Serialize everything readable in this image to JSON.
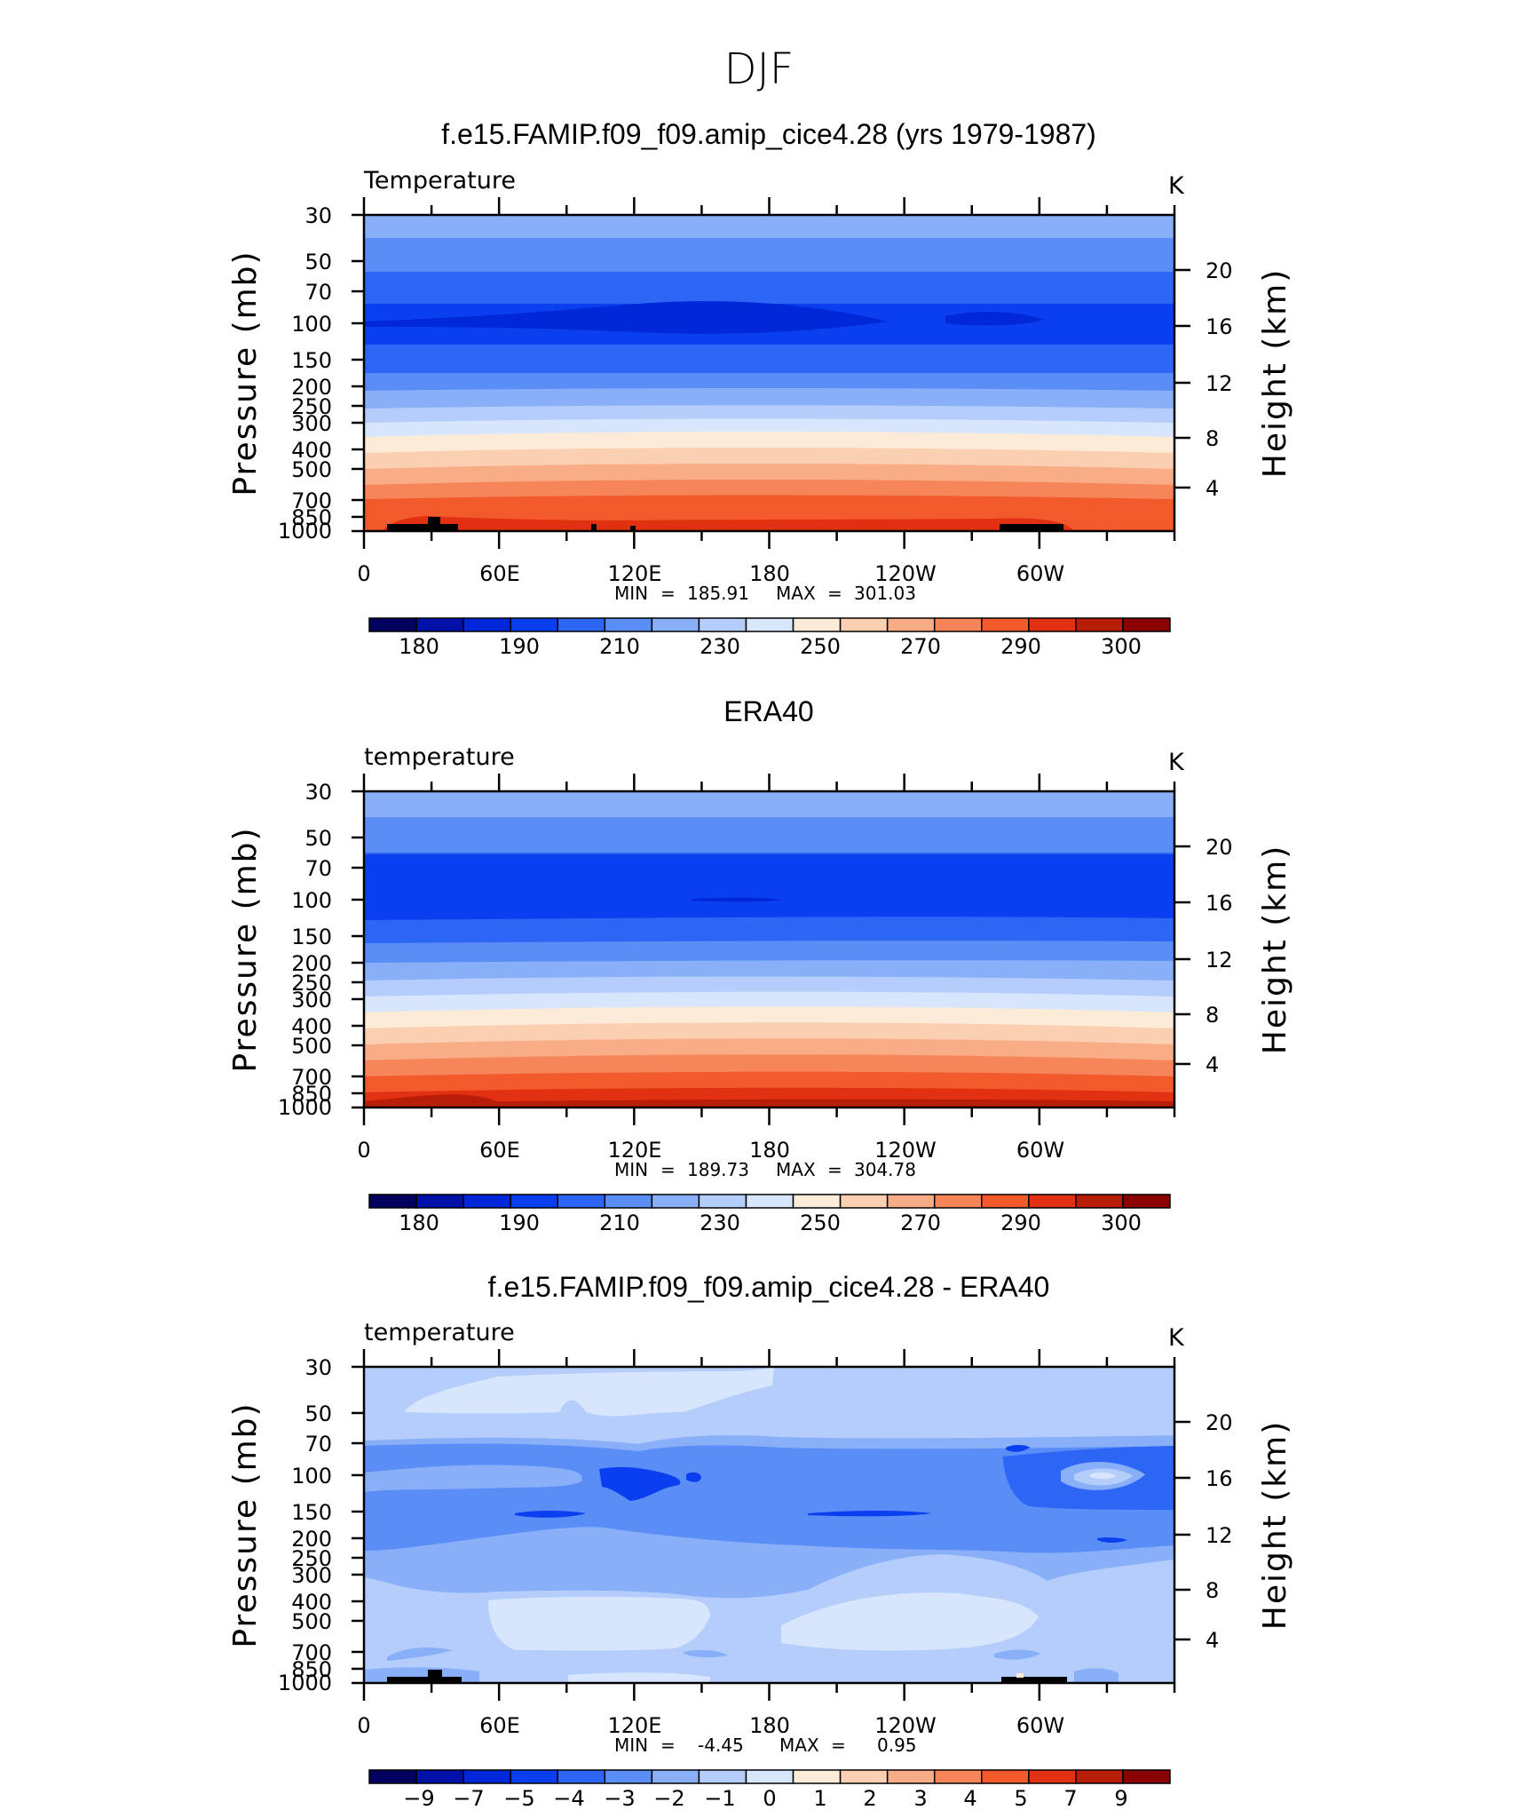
{
  "page_title": "DJF",
  "colors": {
    "temp_bar": [
      "#02005e",
      "#0011a8",
      "#0028d8",
      "#0a3ff0",
      "#2d65f5",
      "#5b8df6",
      "#89aff8",
      "#b4cdfa",
      "#d7e6fc",
      "#fcebd6",
      "#fbcfb2",
      "#f9ad86",
      "#f6865a",
      "#f25a2c",
      "#e23012",
      "#b81d08",
      "#8b0000"
    ],
    "diff_bar": [
      "#02005e",
      "#0011a8",
      "#0028d8",
      "#0a3ff0",
      "#2d65f5",
      "#5b8df6",
      "#89aff8",
      "#b4cdfa",
      "#d7e6fc",
      "#fcebd6",
      "#fbcfb2",
      "#f9ad86",
      "#f6865a",
      "#f25a2c",
      "#e23012",
      "#b81d08",
      "#8b0000"
    ]
  },
  "chart_data": [
    {
      "type": "heatmap",
      "title": "f.e15.FAMIP.f09_f09.amip_cice4.28 (yrs 1979-1987)",
      "variable": "Temperature",
      "units": "K",
      "ylabel": "Pressure (mb)",
      "ylabel_right": "Height (km)",
      "x_ticks": [
        "0",
        "60E",
        "120E",
        "180",
        "120W",
        "60W"
      ],
      "y_ticks": [
        "30",
        "50",
        "70",
        "100",
        "150",
        "200",
        "250",
        "300",
        "400",
        "500",
        "700",
        "850",
        "1000"
      ],
      "y2_ticks": [
        "20",
        "16",
        "12",
        "8",
        "4"
      ],
      "min_label": "MIN",
      "min_value": "185.91",
      "max_label": "MAX",
      "max_value": "301.03",
      "colorbar_labels": [
        "180",
        "190",
        "210",
        "230",
        "250",
        "270",
        "290",
        "300"
      ]
    },
    {
      "type": "heatmap",
      "title": "ERA40",
      "variable": "temperature",
      "units": "K",
      "ylabel": "Pressure (mb)",
      "ylabel_right": "Height (km)",
      "x_ticks": [
        "0",
        "60E",
        "120E",
        "180",
        "120W",
        "60W"
      ],
      "y_ticks": [
        "30",
        "50",
        "70",
        "100",
        "150",
        "200",
        "250",
        "300",
        "400",
        "500",
        "700",
        "850",
        "1000"
      ],
      "y2_ticks": [
        "20",
        "16",
        "12",
        "8",
        "4"
      ],
      "min_label": "MIN",
      "min_value": "189.73",
      "max_label": "MAX",
      "max_value": "304.78",
      "colorbar_labels": [
        "180",
        "190",
        "210",
        "230",
        "250",
        "270",
        "290",
        "300"
      ]
    },
    {
      "type": "heatmap",
      "title": "f.e15.FAMIP.f09_f09.amip_cice4.28 - ERA40",
      "variable": "temperature",
      "units": "K",
      "ylabel": "Pressure (mb)",
      "ylabel_right": "Height (km)",
      "x_ticks": [
        "0",
        "60E",
        "120E",
        "180",
        "120W",
        "60W"
      ],
      "y_ticks": [
        "30",
        "50",
        "70",
        "100",
        "150",
        "200",
        "250",
        "300",
        "400",
        "500",
        "700",
        "850",
        "1000"
      ],
      "y2_ticks": [
        "20",
        "16",
        "12",
        "8",
        "4"
      ],
      "min_label": "MIN",
      "min_value": "-4.45",
      "max_label": "MAX",
      "max_value": "0.95",
      "colorbar_labels": [
        "−9",
        "−7",
        "−5",
        "−4",
        "−3",
        "−2",
        "−1",
        "0",
        "1",
        "2",
        "3",
        "4",
        "5",
        "7",
        "9"
      ]
    }
  ]
}
